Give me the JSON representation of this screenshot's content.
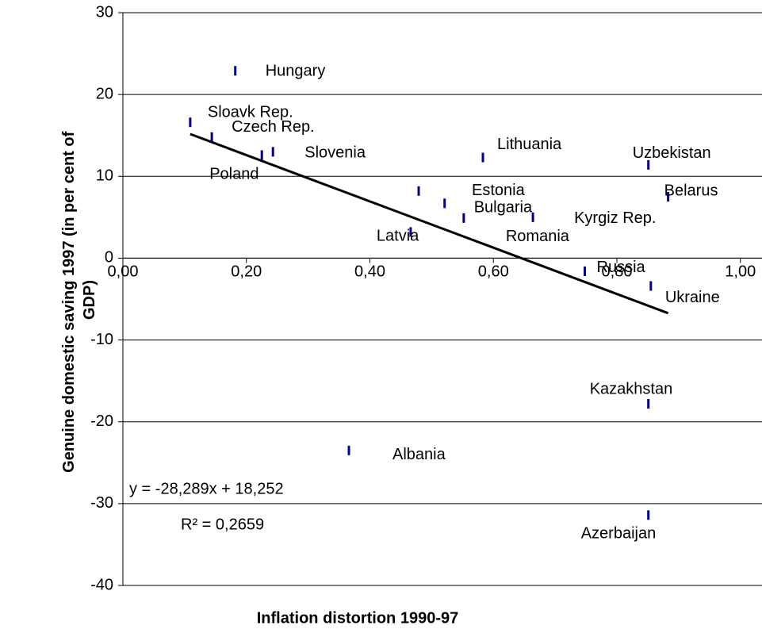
{
  "chart_data": {
    "type": "scatter",
    "xlabel": "Inflation distortion 1990-97",
    "ylabel": [
      "Genuine domestic saving 1997 (in per cent of",
      "GDP)"
    ],
    "xlim": [
      0,
      1.035
    ],
    "ylim": [
      -40,
      30
    ],
    "xticks": [
      {
        "value": 0,
        "label": "0,00"
      },
      {
        "value": 0.2,
        "label": "0,20"
      },
      {
        "value": 0.4,
        "label": "0,40"
      },
      {
        "value": 0.6,
        "label": "0,60"
      },
      {
        "value": 0.8,
        "label": "0,80"
      },
      {
        "value": 1,
        "label": "1,00"
      }
    ],
    "yticks": [
      -40,
      -30,
      -20,
      -10,
      0,
      10,
      20,
      30
    ],
    "grid": true,
    "color": "#000080",
    "labels": [
      "Hungary",
      "Sloavk Rep.",
      "Czech Rep.",
      "Poland",
      "Slovenia",
      "Lithuania",
      "Uzbekistan",
      "Belarus",
      "Estonia",
      "Bulgaria",
      "Romania",
      "Kyrgiz Rep.",
      "Latvia",
      "Russia",
      "Ukraine",
      "Kazakhstan",
      "Azerbaijan",
      "Albania"
    ],
    "x": [
      0.182,
      0.109,
      0.144,
      0.225,
      0.243,
      0.583,
      0.851,
      0.883,
      0.479,
      0.521,
      0.552,
      0.664,
      0.466,
      0.748,
      0.855,
      0.851,
      0.851,
      0.366
    ],
    "values": [
      22.9,
      16.6,
      14.8,
      12.6,
      13.0,
      12.3,
      11.4,
      7.5,
      8.2,
      6.7,
      4.9,
      5.0,
      3.2,
      -1.6,
      -3.4,
      -17.8,
      -31.4,
      -23.5
    ],
    "trendline": {
      "slope": -28.289,
      "intercept": 18.252,
      "color": "#000000"
    },
    "annotations": [
      "y = -28,289x + 18,252",
      "R² = 0,2659"
    ]
  }
}
